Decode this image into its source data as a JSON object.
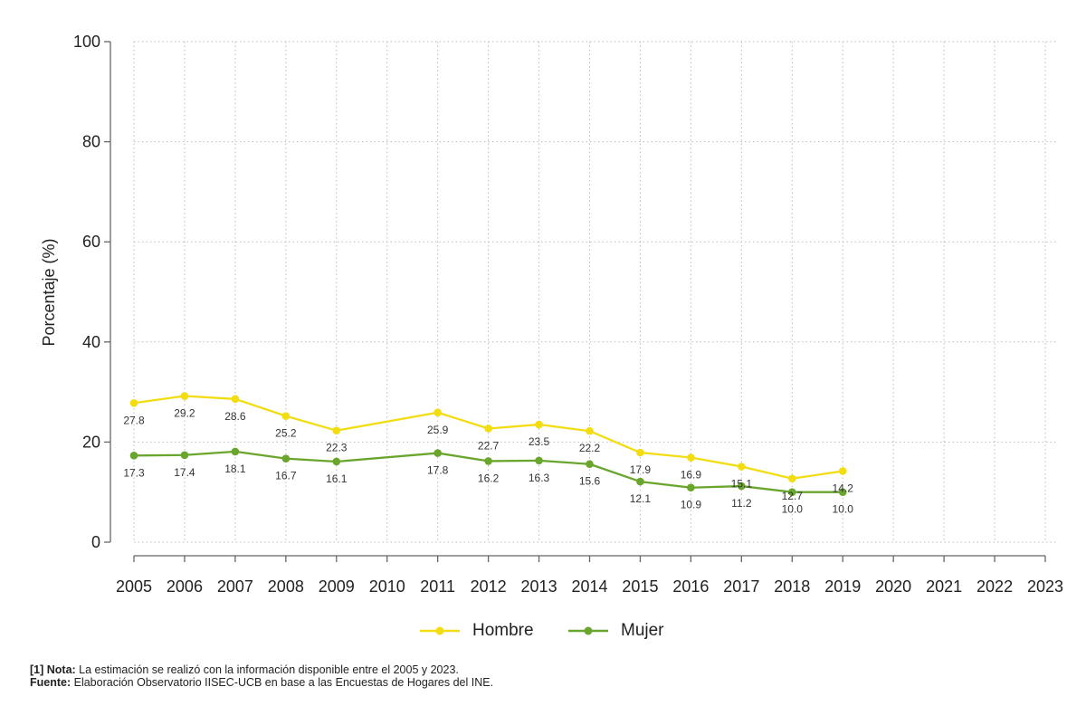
{
  "chart_data": {
    "type": "line",
    "title": "",
    "xlabel": "",
    "ylabel": "Porcentaje (%)",
    "ylim": [
      0,
      100
    ],
    "yticks": [
      0,
      20,
      40,
      60,
      80,
      100
    ],
    "x": [
      2005,
      2006,
      2007,
      2008,
      2009,
      2010,
      2011,
      2012,
      2013,
      2014,
      2015,
      2016,
      2017,
      2018,
      2019,
      2020,
      2021,
      2022,
      2023
    ],
    "grid": true,
    "series": [
      {
        "name": "Hombre",
        "color": "#f2dc12",
        "x": [
          2005,
          2006,
          2007,
          2008,
          2009,
          2011,
          2012,
          2013,
          2014,
          2015,
          2016,
          2017,
          2018,
          2019
        ],
        "values": [
          27.8,
          29.2,
          28.6,
          25.2,
          22.3,
          25.9,
          22.7,
          23.5,
          22.2,
          17.9,
          16.9,
          15.1,
          12.7,
          14.2
        ],
        "labels": [
          "27.8",
          "29.2",
          "28.6",
          "25.2",
          "22.3",
          "25.9",
          "22.7",
          "23.5",
          "22.2",
          "17.9",
          "16.9",
          "15.1",
          "12.7",
          "14.2"
        ]
      },
      {
        "name": "Mujer",
        "color": "#6aa62e",
        "x": [
          2005,
          2006,
          2007,
          2008,
          2009,
          2011,
          2012,
          2013,
          2014,
          2015,
          2016,
          2017,
          2018,
          2019
        ],
        "values": [
          17.3,
          17.4,
          18.1,
          16.7,
          16.1,
          17.8,
          16.2,
          16.3,
          15.6,
          12.1,
          10.9,
          11.2,
          10.0,
          10.0
        ],
        "labels": [
          "17.3",
          "17.4",
          "18.1",
          "16.7",
          "16.1",
          "17.8",
          "16.2",
          "16.3",
          "15.6",
          "12.1",
          "10.9",
          "11.2",
          "10.0",
          "10.0"
        ]
      }
    ],
    "legend": "bottom-center"
  },
  "notes": {
    "note_label": "[1] Nota:",
    "note_text": " La estimación se realizó con la información disponible entre el 2005 y 2023.",
    "source_label": "Fuente:",
    "source_text": " Elaboración Observatorio IISEC-UCB en base a las Encuestas de Hogares del INE."
  }
}
